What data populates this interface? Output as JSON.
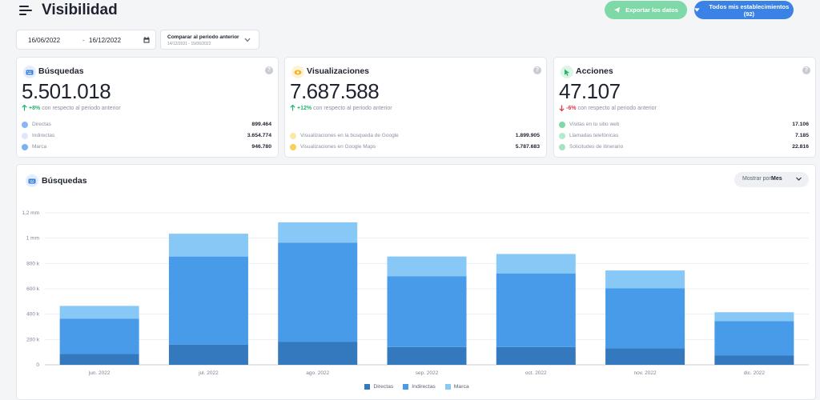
{
  "header": {
    "title": "Visibilidad",
    "export_label": "Exportar los datos",
    "establishments_label": "Todos mis establecimientos (92)"
  },
  "filters": {
    "date_from": "16/06/2022",
    "date_to": "16/12/2022",
    "compare_label": "Comparar al periodo anterior",
    "compare_range": "14/12/2021 - 15/06/2022"
  },
  "cards": [
    {
      "title": "Búsquedas",
      "value": "5.501.018",
      "trend_dir": "up",
      "trend_pct": "+8%",
      "trend_text": "con respecto al periodo anterior",
      "metrics": [
        {
          "label": "Directas",
          "value": "899.464"
        },
        {
          "label": "Indirectas",
          "value": "3.654.774"
        },
        {
          "label": "Marca",
          "value": "946.780"
        }
      ]
    },
    {
      "title": "Visualizaciones",
      "value": "7.687.588",
      "trend_dir": "up",
      "trend_pct": "+12%",
      "trend_text": "con respecto al periodo anterior",
      "metrics": [
        {
          "label": "Visualizaciones en la búsqueda de Google",
          "value": "1.899.905"
        },
        {
          "label": "Visualizaciones en Google Maps",
          "value": "5.787.683"
        }
      ]
    },
    {
      "title": "Acciones",
      "value": "47.107",
      "trend_dir": "down",
      "trend_pct": "-6%",
      "trend_text": "con respecto al periodo anterior",
      "metrics": [
        {
          "label": "Visitas en tu sitio web",
          "value": "17.106"
        },
        {
          "label": "Llamadas telefónicas",
          "value": "7.185"
        },
        {
          "label": "Solicitudes de itinerario",
          "value": "22.816"
        }
      ]
    }
  ],
  "chart_section": {
    "title": "Búsquedas",
    "show_by_label": "Mostrar por:",
    "show_by_value": "Mes"
  },
  "colors": {
    "directas": "#3478bd",
    "indirectas": "#479be8",
    "marca": "#88c8f7"
  },
  "chart_data": {
    "type": "bar",
    "stacked": true,
    "categories": [
      "jun. 2022",
      "jul. 2022",
      "ago. 2022",
      "sep. 2022",
      "oct. 2022",
      "nov. 2022",
      "dic. 2022"
    ],
    "series": [
      {
        "name": "Directas",
        "values": [
          85000,
          160000,
          180000,
          140000,
          140000,
          130000,
          75000
        ]
      },
      {
        "name": "Indirectas",
        "values": [
          280000,
          695000,
          785000,
          560000,
          580000,
          475000,
          270000
        ]
      },
      {
        "name": "Marca",
        "values": [
          100000,
          180000,
          160000,
          155000,
          155000,
          140000,
          70000
        ]
      }
    ],
    "yticks": [
      "0",
      "200 k",
      "400 k",
      "600 k",
      "800 k",
      "1 mm",
      "1,2 mm"
    ],
    "ylim": [
      0,
      1200000
    ],
    "grid": true,
    "legend": "bottom-center"
  }
}
